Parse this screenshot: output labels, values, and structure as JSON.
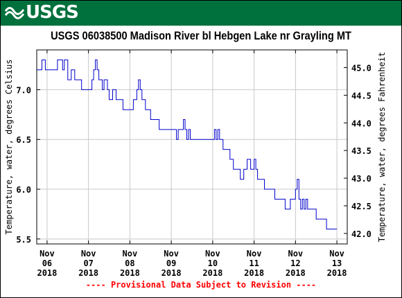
{
  "header": {
    "logo_text": "USGS",
    "logo_icon": "usgs-wave-logo",
    "banner_color": "#00703c"
  },
  "footer": {
    "note": "---- Provisional Data Subject to Revision ----",
    "note_color": "#ff0000"
  },
  "chart_data": {
    "type": "line",
    "title": "USGS 06038500 Madison River bl Hebgen Lake nr Grayling MT",
    "ylabel_left": "Temperature, water, degrees Celsius",
    "ylabel_right": "Temperature, water, degrees Fahrenheit",
    "grid": true,
    "line_color": "#0000cc",
    "ylim_left": [
      5.45,
      7.4
    ],
    "ylim_right": [
      41.81,
      45.32
    ],
    "yticks_left": [
      5.5,
      6.0,
      6.5,
      7.0
    ],
    "yticks_left_labels": [
      "5.5",
      "6.0",
      "6.5",
      "7.0"
    ],
    "yticks_right": [
      42.0,
      42.5,
      43.0,
      43.5,
      44.0,
      44.5,
      45.0
    ],
    "yticks_right_labels": [
      "42.0",
      "42.5",
      "43.0",
      "43.5",
      "44.0",
      "44.5",
      "45.0"
    ],
    "xlim": [
      "2018-11-05T18:00",
      "2018-11-13T06:00"
    ],
    "xticks": [
      {
        "t": "2018-11-06T00:00",
        "month": "Nov",
        "day": "06",
        "year": "2018"
      },
      {
        "t": "2018-11-07T00:00",
        "month": "Nov",
        "day": "07",
        "year": "2018"
      },
      {
        "t": "2018-11-08T00:00",
        "month": "Nov",
        "day": "08",
        "year": "2018"
      },
      {
        "t": "2018-11-09T00:00",
        "month": "Nov",
        "day": "09",
        "year": "2018"
      },
      {
        "t": "2018-11-10T00:00",
        "month": "Nov",
        "day": "10",
        "year": "2018"
      },
      {
        "t": "2018-11-11T00:00",
        "month": "Nov",
        "day": "11",
        "year": "2018"
      },
      {
        "t": "2018-11-12T00:00",
        "month": "Nov",
        "day": "12",
        "year": "2018"
      },
      {
        "t": "2018-11-13T00:00",
        "month": "Nov",
        "day": "13",
        "year": "2018"
      }
    ],
    "series": [
      {
        "values": [
          [
            "2018-11-05T18:00",
            7.2
          ],
          [
            "2018-11-05T20:00",
            7.2
          ],
          [
            "2018-11-05T21:00",
            7.3
          ],
          [
            "2018-11-05T23:00",
            7.2
          ],
          [
            "2018-11-06T03:00",
            7.2
          ],
          [
            "2018-11-06T06:00",
            7.3
          ],
          [
            "2018-11-06T09:00",
            7.2
          ],
          [
            "2018-11-06T10:00",
            7.3
          ],
          [
            "2018-11-06T12:00",
            7.1
          ],
          [
            "2018-11-06T14:00",
            7.2
          ],
          [
            "2018-11-06T16:00",
            7.1
          ],
          [
            "2018-11-06T18:00",
            7.1
          ],
          [
            "2018-11-06T20:00",
            7.0
          ],
          [
            "2018-11-07T00:00",
            7.0
          ],
          [
            "2018-11-07T02:00",
            7.1
          ],
          [
            "2018-11-07T03:00",
            7.2
          ],
          [
            "2018-11-07T04:00",
            7.3
          ],
          [
            "2018-11-07T05:00",
            7.2
          ],
          [
            "2018-11-07T06:00",
            7.1
          ],
          [
            "2018-11-07T08:00",
            7.0
          ],
          [
            "2018-11-07T09:00",
            7.1
          ],
          [
            "2018-11-07T11:00",
            7.0
          ],
          [
            "2018-11-07T12:00",
            6.9
          ],
          [
            "2018-11-07T14:00",
            7.0
          ],
          [
            "2018-11-07T16:00",
            6.9
          ],
          [
            "2018-11-07T18:00",
            6.9
          ],
          [
            "2018-11-07T20:00",
            6.8
          ],
          [
            "2018-11-08T00:00",
            6.8
          ],
          [
            "2018-11-08T02:00",
            6.9
          ],
          [
            "2018-11-08T04:00",
            7.0
          ],
          [
            "2018-11-08T05:00",
            7.1
          ],
          [
            "2018-11-08T06:00",
            7.0
          ],
          [
            "2018-11-08T07:00",
            6.9
          ],
          [
            "2018-11-08T09:00",
            6.8
          ],
          [
            "2018-11-08T11:00",
            6.8
          ],
          [
            "2018-11-08T12:00",
            6.7
          ],
          [
            "2018-11-08T16:00",
            6.7
          ],
          [
            "2018-11-08T17:00",
            6.6
          ],
          [
            "2018-11-09T00:00",
            6.6
          ],
          [
            "2018-11-09T02:00",
            6.6
          ],
          [
            "2018-11-09T03:00",
            6.5
          ],
          [
            "2018-11-09T04:00",
            6.6
          ],
          [
            "2018-11-09T06:00",
            6.6
          ],
          [
            "2018-11-09T07:00",
            6.7
          ],
          [
            "2018-11-09T08:00",
            6.6
          ],
          [
            "2018-11-09T09:00",
            6.5
          ],
          [
            "2018-11-09T10:00",
            6.6
          ],
          [
            "2018-11-09T11:00",
            6.5
          ],
          [
            "2018-11-10T00:00",
            6.5
          ],
          [
            "2018-11-10T01:00",
            6.6
          ],
          [
            "2018-11-10T02:00",
            6.5
          ],
          [
            "2018-11-10T03:00",
            6.6
          ],
          [
            "2018-11-10T04:00",
            6.5
          ],
          [
            "2018-11-10T05:00",
            6.5
          ],
          [
            "2018-11-10T06:00",
            6.4
          ],
          [
            "2018-11-10T10:00",
            6.3
          ],
          [
            "2018-11-10T12:00",
            6.2
          ],
          [
            "2018-11-10T16:00",
            6.1
          ],
          [
            "2018-11-10T18:00",
            6.2
          ],
          [
            "2018-11-10T20:00",
            6.3
          ],
          [
            "2018-11-10T22:00",
            6.2
          ],
          [
            "2018-11-11T00:00",
            6.3
          ],
          [
            "2018-11-11T01:00",
            6.2
          ],
          [
            "2018-11-11T02:00",
            6.1
          ],
          [
            "2018-11-11T06:00",
            6.0
          ],
          [
            "2018-11-11T11:00",
            6.0
          ],
          [
            "2018-11-11T12:00",
            5.9
          ],
          [
            "2018-11-11T16:00",
            5.9
          ],
          [
            "2018-11-11T18:00",
            5.8
          ],
          [
            "2018-11-11T21:00",
            5.9
          ],
          [
            "2018-11-11T22:00",
            5.9
          ],
          [
            "2018-11-12T00:00",
            6.0
          ],
          [
            "2018-11-12T01:00",
            6.1
          ],
          [
            "2018-11-12T02:00",
            5.9
          ],
          [
            "2018-11-12T03:00",
            5.8
          ],
          [
            "2018-11-12T04:00",
            5.9
          ],
          [
            "2018-11-12T05:00",
            5.8
          ],
          [
            "2018-11-12T06:00",
            5.9
          ],
          [
            "2018-11-12T07:00",
            5.8
          ],
          [
            "2018-11-12T10:00",
            5.8
          ],
          [
            "2018-11-12T12:00",
            5.7
          ],
          [
            "2018-11-12T17:00",
            5.7
          ],
          [
            "2018-11-12T18:00",
            5.6
          ],
          [
            "2018-11-13T00:00",
            5.6
          ]
        ]
      }
    ]
  }
}
